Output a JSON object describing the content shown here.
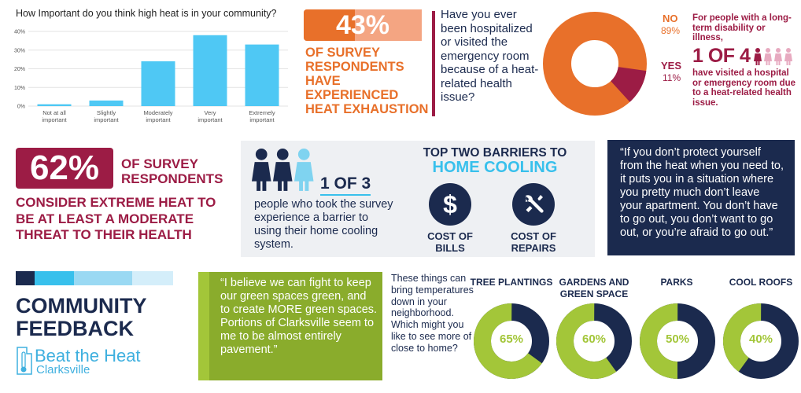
{
  "chart_data": {
    "type": "bar",
    "title": "How Important do you think high heat is in your community?",
    "categories": [
      "Not at all important",
      "Slightly important",
      "Moderately important",
      "Very important",
      "Extremely important"
    ],
    "category_lines": [
      [
        "Not at all",
        "important"
      ],
      [
        "Slightly",
        "important"
      ],
      [
        "Moderately",
        "important"
      ],
      [
        "Very",
        "important"
      ],
      [
        "Extremely",
        "important"
      ]
    ],
    "values": [
      1,
      3,
      24,
      38,
      33
    ],
    "yticks": [
      "0%",
      "10%",
      "20%",
      "30%",
      "40%"
    ],
    "ylim": [
      0,
      40
    ],
    "grid": true,
    "bar_color": "#4fc8f4"
  },
  "exhaustion": {
    "value": "43%",
    "fraction": 0.43,
    "text": "OF SURVEY RESPONDENTS HAVE EXPERIENCED HEAT EXHAUSTION"
  },
  "hospital": {
    "question": "Have you ever been hospitalized or visited the emergency room because of a heat-related health issue?",
    "no_label": "NO",
    "no_value": "89%",
    "no_fraction": 0.89,
    "yes_label": "YES",
    "yes_value": "11%",
    "yes_fraction": 0.11,
    "colors": {
      "no": "#e8702a",
      "yes": "#9c1c45"
    }
  },
  "disability": {
    "intro": "For people with a long-term disability or illness,",
    "stat": "1 OF 4",
    "outro": "have visited a hospital or emergency room due to a heat-related health issue.",
    "people_total": 4,
    "people_highlighted": 1
  },
  "threat": {
    "value": "62%",
    "head": "OF SURVEY RESPONDENTS",
    "body": "CONSIDER EXTREME HEAT TO BE AT LEAST A MODERATE THREAT TO THEIR HEALTH"
  },
  "cooling_barrier": {
    "stat": "1 OF 3",
    "desc": "people who took the survey experience a barrier to using their home cooling system.",
    "people_total": 3,
    "people_highlighted": 1
  },
  "barriers": {
    "title_line1": "TOP TWO BARRIERS TO",
    "title_line2": "HOME COOLING",
    "bills_icon_glyph": "$",
    "bills_icon": "dollar-icon",
    "bills_label": "COST OF BILLS",
    "repairs_icon": "tools-icon",
    "repairs_label": "COST OF REPAIRS"
  },
  "quote1": "“If you don’t protect yourself from the heat when you need to, it puts you in a situation where you pretty much don’t leave your apartment. You don’t have to go out, you don’t want to go out, or you’re afraid to go out.”",
  "community": {
    "title": "COMMUNITY FEEDBACK",
    "logo_line1": "Beat the Heat",
    "logo_line2": "Clarksville",
    "legend_colors": [
      "#1b2a4e",
      "#38c0ec",
      "#9ad9f3",
      "#d4eefa"
    ]
  },
  "quote2": "“I believe we can fight to keep our green spaces green, and to create MORE green spaces. Portions of Clarksville seem to me to be almost entirely pavement.”",
  "features": {
    "intro": "These things can bring temperatures down in your neighborhood. Which might you like to see more of close to home?",
    "items": [
      {
        "label": "TREE PLANTINGS",
        "value": "65%",
        "fraction": 0.65
      },
      {
        "label": "GARDENS AND GREEN SPACE",
        "value": "60%",
        "fraction": 0.6
      },
      {
        "label": "PARKS",
        "value": "50%",
        "fraction": 0.5
      },
      {
        "label": "COOL ROOFS",
        "value": "40%",
        "fraction": 0.4
      }
    ],
    "colors": {
      "fill": "#a3c639",
      "rest": "#1b2a4e"
    }
  }
}
